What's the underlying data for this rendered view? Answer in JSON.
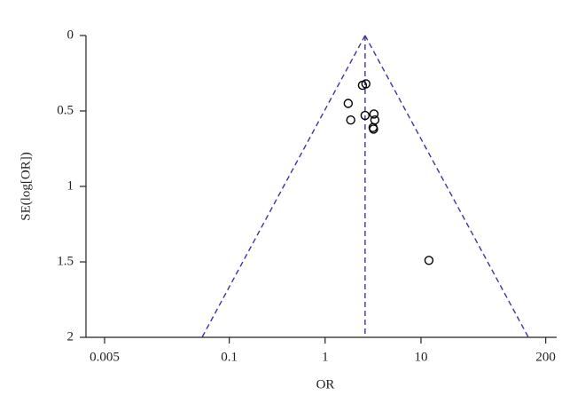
{
  "chart_data": {
    "type": "scatter",
    "xlabel": "OR",
    "ylabel": "SE(log[OR])",
    "x": [
      2.45,
      2.66,
      1.74,
      1.85,
      2.61,
      3.23,
      3.3,
      3.16,
      3.2,
      12.1
    ],
    "values": [
      0.33,
      0.32,
      0.45,
      0.56,
      0.53,
      0.52,
      0.56,
      0.61,
      0.62,
      1.49
    ],
    "color": "#000000",
    "x_log": true,
    "y_reversed": true,
    "xlim": [
      0.0032,
      260
    ],
    "xticks": [
      0.005,
      0.1,
      1,
      10,
      200
    ],
    "ylim": [
      0,
      2
    ],
    "yticks": [
      0,
      0.5,
      1,
      1.5,
      2
    ],
    "funnel": {
      "center": 2.61,
      "left": 0.052,
      "right": 132,
      "color": "#3a35a8"
    }
  }
}
